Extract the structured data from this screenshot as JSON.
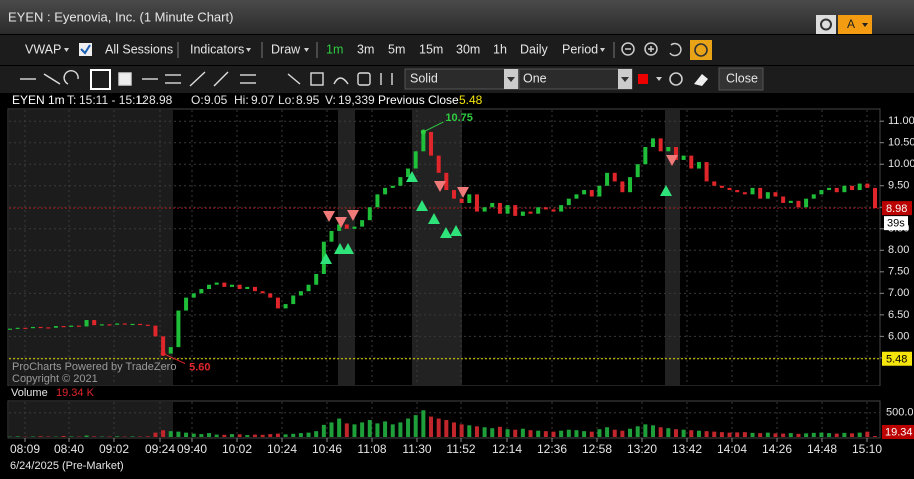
{
  "window": {
    "title": "EYEN : Eyenovia, Inc. (1 Minute Chart)",
    "badge": "A"
  },
  "toolbar": {
    "study": "VWAP",
    "sessions": "All Sessions",
    "indicators": "Indicators",
    "draw": "Draw",
    "intervals": [
      "1m",
      "3m",
      "5m",
      "15m",
      "30m",
      "1h",
      "Daily"
    ],
    "period": "Period"
  },
  "drawing_toolbar": {
    "line_style": "Solid",
    "line_count": "One",
    "close": "Close"
  },
  "info": {
    "symbol": "EYEN 1m",
    "time_label": "T:",
    "time": "15:11 - 15:12",
    "last_label": "L:",
    "last": "8.98",
    "open_label": "O:",
    "open": "9.05",
    "high_label": "Hi:",
    "high": "9.07",
    "low_label": "Lo:",
    "low": "8.95",
    "volume_label": "V:",
    "volume": "19,339",
    "prev_close_label": "Previous Close",
    "prev_close": "5.48"
  },
  "price_chart": {
    "prices": [
      6.18,
      6.2,
      6.19,
      6.22,
      6.21,
      6.2,
      6.24,
      6.22,
      6.25,
      6.23,
      6.38,
      6.26,
      6.28,
      6.27,
      6.3,
      6.28,
      6.29,
      6.27,
      6.25,
      6.0,
      5.6,
      5.75,
      6.6,
      6.9,
      7.0,
      7.1,
      7.2,
      7.25,
      7.15,
      7.2,
      7.1,
      7.15,
      7.05,
      7.0,
      6.9,
      6.65,
      6.75,
      6.95,
      7.05,
      7.2,
      7.45,
      8.2,
      8.45,
      8.6,
      8.5,
      8.55,
      8.7,
      9.0,
      9.3,
      9.45,
      9.5,
      9.7,
      9.9,
      10.3,
      10.75,
      10.2,
      9.8,
      9.4,
      9.2,
      9.1,
      9.3,
      8.9,
      9.0,
      9.1,
      8.85,
      9.05,
      8.8,
      8.9,
      8.85,
      9.0,
      8.95,
      8.9,
      9.05,
      9.2,
      9.3,
      9.4,
      9.25,
      9.5,
      9.8,
      9.6,
      9.35,
      9.7,
      10.0,
      10.4,
      10.6,
      10.3,
      10.4,
      10.1,
      10.2,
      9.9,
      10.05,
      9.6,
      9.5,
      9.45,
      9.4,
      9.35,
      9.3,
      9.45,
      9.2,
      9.35,
      9.25,
      9.1,
      9.15,
      9.0,
      9.2,
      9.3,
      9.4,
      9.45,
      9.35,
      9.5,
      9.4,
      9.55,
      9.45,
      8.98
    ],
    "ylim": [
      4.87,
      11.26
    ],
    "yticks": [
      {
        "value": 5.5,
        "label": "5.50"
      },
      {
        "value": 6,
        "label": "6.00"
      },
      {
        "value": 6.5,
        "label": "6.50"
      },
      {
        "value": 7,
        "label": "7.00"
      },
      {
        "value": 7.5,
        "label": "7.50"
      },
      {
        "value": 8,
        "label": "8.00"
      },
      {
        "value": 8.5,
        "label": "8.50"
      },
      {
        "value": 9,
        "label": "9.00"
      },
      {
        "value": 9.5,
        "label": "9.50"
      },
      {
        "value": 10,
        "label": "10.00"
      },
      {
        "value": 10.5,
        "label": "10.50"
      },
      {
        "value": 11,
        "label": "11.00"
      }
    ],
    "last_price": {
      "value": 8.98,
      "label": "8.98"
    },
    "countdown": "39s",
    "prev_close_line": {
      "value": 5.48,
      "label": "5.48"
    },
    "high_marker": {
      "value": 10.75,
      "label": "10.75"
    },
    "low_marker": {
      "value": 5.6,
      "label": "5.60"
    },
    "watermark": [
      "ProCharts Powered by TradeZero",
      "Copyright © 2021"
    ]
  },
  "volume_chart": {
    "title": "Volume",
    "current": "19.34 K",
    "volumes": [
      8,
      12,
      6,
      10,
      15,
      9,
      7,
      20,
      11,
      8,
      30,
      12,
      9,
      10,
      14,
      8,
      11,
      9,
      13,
      90,
      140,
      120,
      110,
      90,
      70,
      60,
      80,
      50,
      45,
      60,
      55,
      40,
      50,
      45,
      60,
      70,
      55,
      65,
      80,
      90,
      120,
      250,
      300,
      380,
      280,
      260,
      300,
      350,
      280,
      320,
      260,
      300,
      380,
      450,
      550,
      420,
      380,
      350,
      300,
      260,
      240,
      220,
      200,
      180,
      210,
      160,
      150,
      170,
      140,
      130,
      120,
      110,
      130,
      150,
      140,
      120,
      110,
      160,
      200,
      150,
      130,
      170,
      220,
      260,
      240,
      200,
      180,
      160,
      150,
      140,
      130,
      120,
      110,
      100,
      90,
      95,
      100,
      85,
      80,
      90,
      75,
      70,
      80,
      65,
      75,
      85,
      90,
      80,
      70,
      85,
      75,
      90,
      110,
      19.34
    ],
    "ylim": [
      0,
      720
    ],
    "yticks": [
      {
        "value": 500,
        "label": "500.0"
      }
    ],
    "last_tag": "19.34"
  },
  "time_axis": {
    "labels": [
      "08:09",
      "08:40",
      "09:02",
      "09:24",
      "09:40",
      "10:02",
      "10:24",
      "10:46",
      "11:08",
      "11:30",
      "11:52",
      "12:14",
      "12:36",
      "12:58",
      "13:20",
      "13:42",
      "14:04",
      "14:26",
      "14:48",
      "15:10"
    ],
    "date": "6/24/2025 (Pre-Market)"
  }
}
